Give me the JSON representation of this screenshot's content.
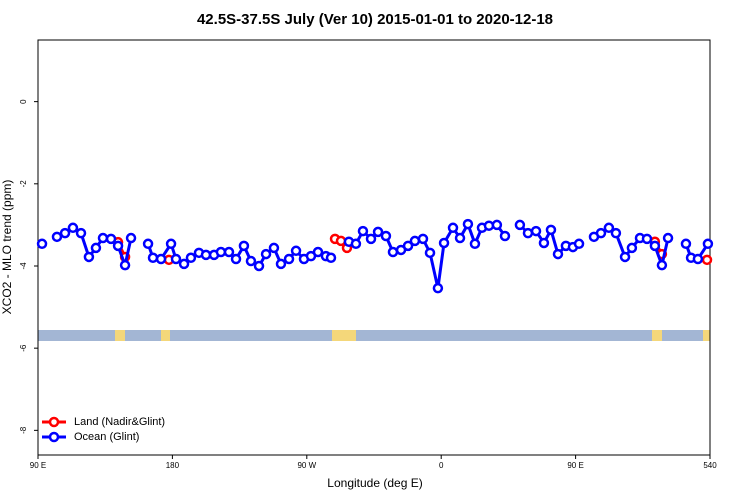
{
  "chart_data": {
    "type": "line",
    "title": "42.5S-37.5S July (Ver 10)   2015-01-01 to 2020-12-18",
    "xlabel": "Longitude (deg E)",
    "ylabel": "XCO2 - MLO trend (ppm)",
    "xlim": [
      90,
      540
    ],
    "ylim": [
      -8.6,
      1.5
    ],
    "xticks": [
      {
        "value": 90,
        "label": "90 E"
      },
      180,
      {
        "value": 270,
        "label": "90 W"
      },
      {
        "value": 360,
        "label": "0"
      },
      {
        "value": 450,
        "label": "90 E"
      },
      540
    ],
    "yticks": [
      0,
      -2,
      -4,
      -6,
      -8
    ],
    "legend": "bottom-left",
    "series": [
      {
        "name": "Land (Nadir&Glint)",
        "color": "#ff0000",
        "x": [
          143.6,
          148.3,
          null,
          177.7,
          null,
          288.9,
          292.9,
          296.9,
          null,
          503.1,
          507.8,
          null,
          538.0
        ],
        "values": [
          -3.42,
          -3.78,
          null,
          -3.85,
          null,
          -3.34,
          -3.39,
          -3.56,
          null,
          -3.41,
          -3.71,
          null,
          -3.85
        ]
      },
      {
        "name": "Ocean (Glint)",
        "color": "#0000ff",
        "x": [
          92.7,
          null,
          102.7,
          108.1,
          113.4,
          118.8,
          124.1,
          128.8,
          133.5,
          138.9,
          143.6,
          148.3,
          152.3,
          null,
          163.7,
          167.0,
          172.4,
          179.1,
          182.4,
          187.8,
          192.4,
          197.8,
          202.5,
          207.9,
          212.5,
          217.9,
          222.6,
          227.9,
          232.6,
          238.0,
          242.7,
          248.0,
          252.7,
          258.1,
          262.8,
          268.1,
          272.8,
          277.5,
          282.8,
          286.2,
          null,
          298.2,
          302.9,
          307.6,
          313.0,
          317.7,
          323.0,
          327.7,
          333.1,
          337.8,
          342.4,
          347.8,
          352.5,
          357.8,
          361.9,
          367.9,
          372.6,
          377.9,
          382.6,
          387.3,
          392.0,
          397.3,
          402.7,
          null,
          412.7,
          418.1,
          423.5,
          428.8,
          433.5,
          438.2,
          443.5,
          448.2,
          452.3,
          null,
          462.3,
          467.0,
          472.3,
          477.0,
          483.1,
          487.7,
          493.1,
          497.8,
          503.1,
          507.8,
          511.9,
          null,
          523.9,
          527.3,
          531.9,
          538.6
        ],
        "values": [
          -3.46,
          null,
          -3.29,
          -3.2,
          -3.07,
          -3.2,
          -3.78,
          -3.56,
          -3.32,
          -3.34,
          -3.51,
          -3.98,
          -3.32,
          null,
          -3.46,
          -3.8,
          -3.83,
          -3.46,
          -3.83,
          -3.95,
          -3.8,
          -3.68,
          -3.73,
          -3.73,
          -3.66,
          -3.66,
          -3.83,
          -3.51,
          -3.88,
          -4.0,
          -3.71,
          -3.56,
          -3.95,
          -3.83,
          -3.63,
          -3.83,
          -3.76,
          -3.66,
          -3.76,
          -3.8,
          null,
          -3.41,
          -3.46,
          -3.15,
          -3.34,
          -3.17,
          -3.27,
          -3.66,
          -3.61,
          -3.51,
          -3.39,
          -3.34,
          -3.68,
          -4.54,
          -3.44,
          -3.07,
          -3.32,
          -2.98,
          -3.46,
          -3.07,
          -3.02,
          -3.0,
          -3.27,
          null,
          -3.0,
          -3.2,
          -3.15,
          -3.44,
          -3.12,
          -3.71,
          -3.51,
          -3.54,
          -3.46,
          null,
          -3.29,
          -3.2,
          -3.07,
          -3.2,
          -3.78,
          -3.56,
          -3.32,
          -3.34,
          -3.51,
          -3.98,
          -3.32,
          null,
          -3.46,
          -3.8,
          -3.83,
          -3.46
        ]
      }
    ]
  }
}
